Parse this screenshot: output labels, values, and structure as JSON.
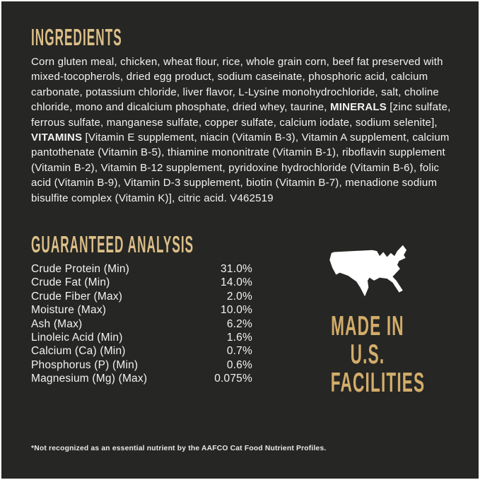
{
  "colors": {
    "background": "#262624",
    "heading_gold": "#dcbf88",
    "badge_gold": "#d3ad6a",
    "body_text": "#f3f3f1",
    "map_white": "#ffffff"
  },
  "ingredients": {
    "title": "INGREDIENTS",
    "segments": [
      {
        "text": "Corn gluten meal, chicken, wheat flour, rice, whole grain corn, beef fat preserved with mixed-tocopherols, dried egg product, sodium caseinate, phosphoric acid, calcium carbonate, potassium chloride, liver flavor, L-Lysine monohydrochloride, salt, choline chloride, mono and dicalcium phosphate, dried whey, taurine, ",
        "bold": false
      },
      {
        "text": "MINERALS",
        "bold": true
      },
      {
        "text": " [zinc sulfate, ferrous sulfate, manganese sulfate, copper sulfate, calcium iodate, sodium selenite], ",
        "bold": false
      },
      {
        "text": "VITAMINS",
        "bold": true
      },
      {
        "text": " [Vitamin E supplement, niacin (Vitamin B-3), Vitamin A supplement, calcium pantothenate (Vitamin B-5), thiamine mononitrate (Vitamin B-1), riboflavin supplement (Vitamin B-2), Vitamin B-12 supplement, pyridoxine hydrochloride (Vitamin B-6), folic acid (Vitamin B-9), Vitamin D-3 supplement, biotin (Vitamin B-7), menadione sodium bisulfite complex (Vitamin K)], citric acid. V462519",
        "bold": false
      }
    ]
  },
  "guaranteed_analysis": {
    "title": "GUARANTEED ANALYSIS",
    "rows": [
      {
        "label": "Crude Protein (Min)",
        "value": "31.0%"
      },
      {
        "label": "Crude Fat (Min)",
        "value": "14.0%"
      },
      {
        "label": "Crude Fiber (Max)",
        "value": "2.0%"
      },
      {
        "label": "Moisture (Max)",
        "value": "10.0%"
      },
      {
        "label": "Ash (Max)",
        "value": "6.2%"
      },
      {
        "label": "Linoleic Acid (Min)",
        "value": "1.6%"
      },
      {
        "label": "Calcium (Ca) (Min)",
        "value": "0.7%"
      },
      {
        "label": "Phosphorus (P) (Min)",
        "value": "0.6%"
      },
      {
        "label": "Magnesium (Mg) (Max)",
        "value": "0.075%"
      }
    ]
  },
  "made_in_badge": {
    "icon": "usa-map-icon",
    "lines": [
      "MADE IN",
      "U.S.",
      "FACILITIES"
    ]
  },
  "footnote": "*Not recognized as an essential nutrient by the AAFCO Cat Food Nutrient Profiles."
}
